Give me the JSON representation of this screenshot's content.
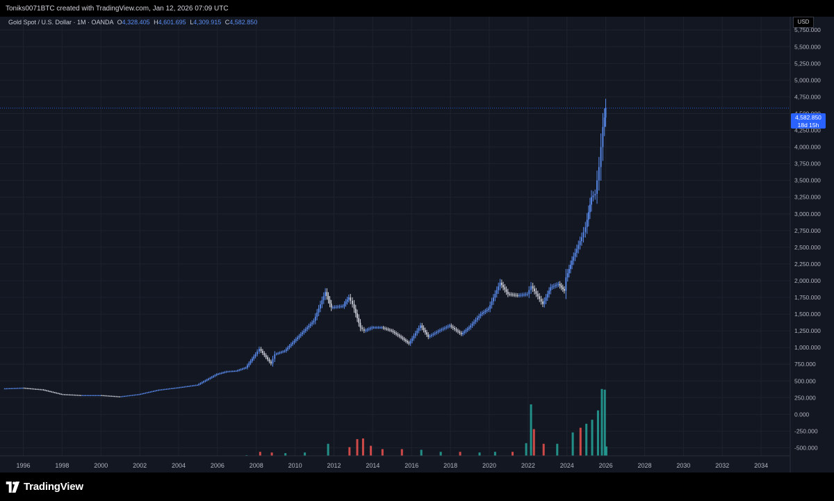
{
  "header": {
    "attribution": "Toniks0071BTC created with TradingView.com, Jan 12, 2026 07:09 UTC"
  },
  "legend": {
    "symbol_line": "Gold Spot / U.S. Dollar · 1M · OANDA",
    "o_label": "O",
    "o_value": "4,328.405",
    "h_label": "H",
    "h_value": "4,601.695",
    "l_label": "L",
    "l_value": "4,309.915",
    "c_label": "C",
    "c_value": "4,582.850"
  },
  "price_axis": {
    "currency": "USD",
    "last_price": "4,582.850",
    "countdown": "18d 15h"
  },
  "footer": {
    "brand": "TradingView"
  },
  "colors": {
    "background": "#131722",
    "up": "#5b8ef2",
    "down": "#d1d4dc",
    "vol_up": "#26a69a",
    "vol_down": "#ef5350",
    "grid": "#1e222d"
  },
  "chart_data": {
    "type": "candlestick",
    "title": "Gold Spot / U.S. Dollar · 1M · OANDA",
    "x_ticks": [
      "1996",
      "1998",
      "2000",
      "2002",
      "2004",
      "2006",
      "2008",
      "2010",
      "2012",
      "2014",
      "2016",
      "2018",
      "2020",
      "2022",
      "2024",
      "2026",
      "2028",
      "2030",
      "2032",
      "2034"
    ],
    "x_range": [
      1994.8,
      2035.5
    ],
    "y_ticks": [
      "-500.000",
      "-250.000",
      "0.000",
      "250.000",
      "500.000",
      "750.000",
      "1,000.000",
      "1,250.000",
      "1,500.000",
      "1,750.000",
      "2,000.000",
      "2,250.000",
      "2,500.000",
      "2,750.000",
      "3,000.000",
      "3,250.000",
      "3,500.000",
      "3,750.000",
      "4,000.000",
      "4,250.000",
      "4,500.000",
      "4,750.000",
      "5,000.000",
      "5,250.000",
      "5,500.000",
      "5,750.000"
    ],
    "y_range": [
      -620,
      5950
    ],
    "price_series": {
      "name": "XAUUSD",
      "points": [
        [
          1995.0,
          385
        ],
        [
          1996.0,
          395
        ],
        [
          1997.0,
          370
        ],
        [
          1998.0,
          300
        ],
        [
          1999.0,
          285
        ],
        [
          2000.0,
          285
        ],
        [
          2001.0,
          265
        ],
        [
          2002.0,
          300
        ],
        [
          2003.0,
          365
        ],
        [
          2004.0,
          400
        ],
        [
          2005.0,
          440
        ],
        [
          2006.0,
          600
        ],
        [
          2006.5,
          640
        ],
        [
          2007.0,
          650
        ],
        [
          2007.5,
          700
        ],
        [
          2008.0,
          900
        ],
        [
          2008.2,
          980
        ],
        [
          2008.8,
          760
        ],
        [
          2009.0,
          900
        ],
        [
          2009.5,
          950
        ],
        [
          2010.0,
          1100
        ],
        [
          2010.5,
          1250
        ],
        [
          2011.0,
          1400
        ],
        [
          2011.6,
          1830
        ],
        [
          2011.9,
          1600
        ],
        [
          2012.5,
          1620
        ],
        [
          2012.8,
          1750
        ],
        [
          2013.0,
          1650
        ],
        [
          2013.4,
          1300
        ],
        [
          2013.6,
          1250
        ],
        [
          2014.0,
          1300
        ],
        [
          2014.5,
          1300
        ],
        [
          2015.0,
          1250
        ],
        [
          2015.5,
          1150
        ],
        [
          2015.9,
          1060
        ],
        [
          2016.5,
          1330
        ],
        [
          2016.9,
          1160
        ],
        [
          2017.5,
          1260
        ],
        [
          2018.0,
          1330
        ],
        [
          2018.6,
          1200
        ],
        [
          2019.0,
          1300
        ],
        [
          2019.6,
          1500
        ],
        [
          2020.0,
          1580
        ],
        [
          2020.6,
          1970
        ],
        [
          2021.0,
          1800
        ],
        [
          2021.5,
          1780
        ],
        [
          2022.0,
          1800
        ],
        [
          2022.2,
          1920
        ],
        [
          2022.8,
          1650
        ],
        [
          2023.2,
          1900
        ],
        [
          2023.6,
          1950
        ],
        [
          2023.9,
          1850
        ],
        [
          2024.0,
          2050
        ],
        [
          2024.3,
          2300
        ],
        [
          2024.8,
          2650
        ],
        [
          2025.0,
          2800
        ],
        [
          2025.3,
          3250
        ],
        [
          2025.5,
          3300
        ],
        [
          2025.7,
          3700
        ],
        [
          2025.8,
          4000
        ],
        [
          2025.9,
          4300
        ],
        [
          2026.03,
          4582.85
        ]
      ]
    },
    "volume_series": {
      "name": "Volume",
      "bars": [
        [
          2006.5,
          5,
          "up"
        ],
        [
          2007.5,
          10,
          "up"
        ],
        [
          2008.2,
          60,
          "down"
        ],
        [
          2008.8,
          50,
          "down"
        ],
        [
          2009.5,
          40,
          "up"
        ],
        [
          2010.5,
          50,
          "up"
        ],
        [
          2011.7,
          180,
          "up"
        ],
        [
          2012.8,
          130,
          "down"
        ],
        [
          2013.2,
          250,
          "down"
        ],
        [
          2013.5,
          260,
          "down"
        ],
        [
          2013.9,
          150,
          "down"
        ],
        [
          2014.5,
          100,
          "down"
        ],
        [
          2015.5,
          100,
          "down"
        ],
        [
          2016.5,
          90,
          "up"
        ],
        [
          2017.5,
          60,
          "up"
        ],
        [
          2018.5,
          60,
          "down"
        ],
        [
          2019.5,
          50,
          "up"
        ],
        [
          2020.3,
          60,
          "up"
        ],
        [
          2021.2,
          60,
          "down"
        ],
        [
          2021.9,
          190,
          "up"
        ],
        [
          2022.15,
          770,
          "up"
        ],
        [
          2022.3,
          400,
          "down"
        ],
        [
          2022.8,
          180,
          "down"
        ],
        [
          2023.5,
          180,
          "up"
        ],
        [
          2024.3,
          350,
          "up"
        ],
        [
          2024.7,
          420,
          "down"
        ],
        [
          2025.0,
          480,
          "up"
        ],
        [
          2025.3,
          540,
          "up"
        ],
        [
          2025.6,
          680,
          "up"
        ],
        [
          2025.8,
          1000,
          "up"
        ],
        [
          2025.95,
          990,
          "up"
        ],
        [
          2026.03,
          140,
          "up"
        ]
      ]
    },
    "last_price": 4582.85,
    "grid": true,
    "legend": "top-left"
  }
}
